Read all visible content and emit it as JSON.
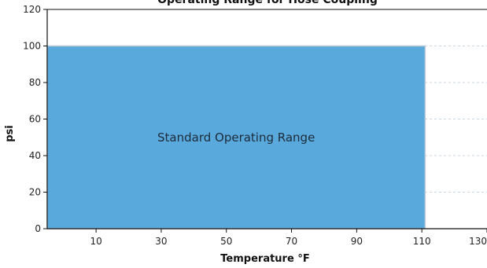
{
  "chart_data": {
    "type": "area",
    "title": "Operating Range for Hose Coupling",
    "xlabel": "Temperature °F",
    "ylabel": "psi",
    "xlim": [
      -5,
      130
    ],
    "ylim": [
      0,
      120
    ],
    "x_ticks": [
      10,
      30,
      50,
      70,
      90,
      110,
      130
    ],
    "y_ticks": [
      0,
      20,
      40,
      60,
      80,
      100,
      120
    ],
    "grid": "horizontal-dashed",
    "region": {
      "label": "Standard Operating Range",
      "x_range": [
        -5,
        111
      ],
      "y_range": [
        0,
        100
      ],
      "color": "#5aa9dc"
    }
  }
}
